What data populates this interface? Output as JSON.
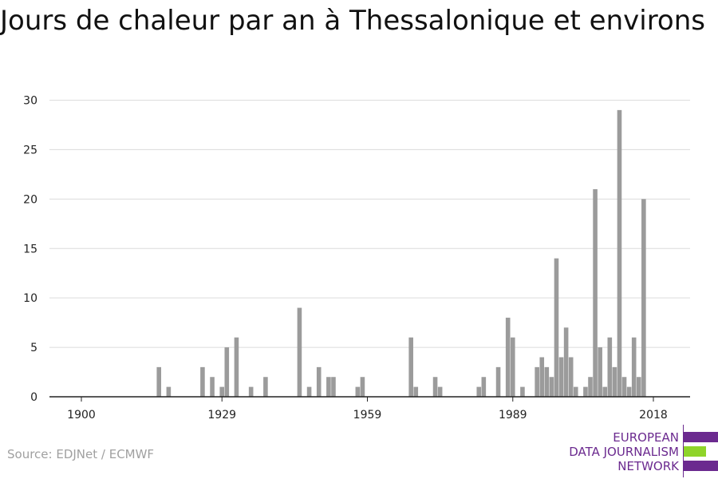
{
  "title": "Jours de chaleur par an à Thessalonique et environs",
  "source": "Source: EDJNet / ECMWF",
  "logo": {
    "lines": [
      "EUROPEAN",
      "DATA JOURNALISM",
      "NETWORK"
    ],
    "colors": {
      "purple": "#6b2a8f",
      "green": "#8fd42a"
    }
  },
  "chart_data": {
    "type": "bar",
    "title": "Jours de chaleur par an à Thessalonique et environs",
    "xlabel": "",
    "ylabel": "",
    "x_ticks": [
      "1900",
      "1929",
      "1959",
      "1989",
      "2018"
    ],
    "y_ticks": [
      "0",
      "5",
      "10",
      "15",
      "20",
      "25",
      "30"
    ],
    "ylim": [
      0,
      31.5
    ],
    "xlim": [
      1897,
      2025
    ],
    "grid": true,
    "bar_color": "#9b9b9b",
    "series": [
      {
        "x": [
          1916,
          1918,
          1925,
          1927,
          1929,
          1930,
          1932,
          1935,
          1938,
          1945,
          1947,
          1949,
          1951,
          1952,
          1957,
          1958,
          1968,
          1969,
          1973,
          1974,
          1982,
          1983,
          1986,
          1988,
          1989,
          1991,
          1994,
          1995,
          1996,
          1997,
          1998,
          1999,
          2000,
          2001,
          2002,
          2004,
          2005,
          2006,
          2007,
          2008,
          2009,
          2010,
          2011,
          2012,
          2013,
          2014,
          2015,
          2016,
          2017
        ],
        "values": [
          3,
          1,
          3,
          2,
          1,
          5,
          6,
          1,
          2,
          9,
          1,
          3,
          2,
          2,
          1,
          2,
          6,
          1,
          2,
          1,
          1,
          2,
          3,
          8,
          6,
          1,
          3,
          4,
          3,
          2,
          14,
          4,
          7,
          4,
          1,
          1,
          2,
          21,
          5,
          1,
          6,
          3,
          29,
          2,
          1,
          6,
          2,
          20,
          0
        ]
      }
    ]
  }
}
